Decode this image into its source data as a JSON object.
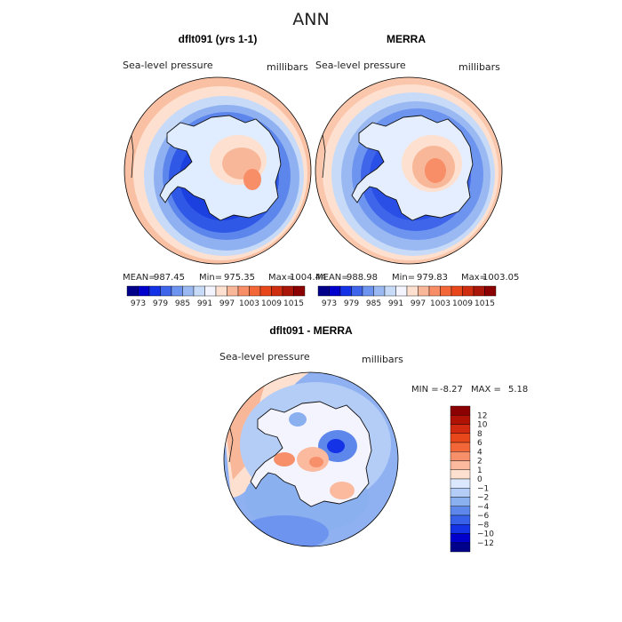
{
  "figure_title": "ANN",
  "panels": [
    {
      "title": "dflt091 (yrs 1-1)",
      "variable": "Sea-level pressure",
      "units": "millibars",
      "stats": {
        "mean_label": "MEAN=",
        "mean": "987.45",
        "min_label": "Min=",
        "min": "975.35",
        "max_label": "Max=",
        "max": "1004.44"
      },
      "colorbar": {
        "ticks": [
          "973",
          "979",
          "985",
          "991",
          "997",
          "1003",
          "1009",
          "1015"
        ],
        "colors": [
          "#00008b",
          "#0000cd",
          "#1432e6",
          "#3f65ea",
          "#6d94ef",
          "#9ab9f3",
          "#c7dbf8",
          "#f4f4ff",
          "#fde0cf",
          "#f9b79a",
          "#f78e67",
          "#f26638",
          "#e8461b",
          "#cf2d10",
          "#aa1608",
          "#8b0000"
        ]
      }
    },
    {
      "title": "MERRA",
      "variable": "Sea-level pressure",
      "units": "millibars",
      "stats": {
        "mean_label": "MEAN=",
        "mean": "988.98",
        "min_label": "Min=",
        "min": "979.83",
        "max_label": "Max=",
        "max": "1003.05"
      },
      "colorbar": {
        "ticks": [
          "973",
          "979",
          "985",
          "991",
          "997",
          "1003",
          "1009",
          "1015"
        ],
        "colors": [
          "#00008b",
          "#0000cd",
          "#1432e6",
          "#3f65ea",
          "#6d94ef",
          "#9ab9f3",
          "#c7dbf8",
          "#f4f4ff",
          "#fde0cf",
          "#f9b79a",
          "#f78e67",
          "#f26638",
          "#e8461b",
          "#cf2d10",
          "#aa1608",
          "#8b0000"
        ]
      }
    },
    {
      "title": "dflt091 - MERRA",
      "variable": "Sea-level pressure",
      "units": "millibars",
      "stats": {
        "min_label": "MIN =",
        "min": "-8.27",
        "max_label": "MAX =",
        "max": "5.18"
      },
      "colorbar": {
        "ticks": [
          "12",
          "10",
          "8",
          "6",
          "4",
          "2",
          "1",
          "0",
          "−1",
          "−2",
          "−4",
          "−6",
          "−8",
          "−10",
          "−12"
        ],
        "colors": [
          "#8b0000",
          "#b01206",
          "#d22a10",
          "#e8461b",
          "#f26638",
          "#f7906a",
          "#fbb99d",
          "#fde0cf",
          "#dbe8ff",
          "#b4cdf6",
          "#8bb0f0",
          "#5d87eb",
          "#3661e8",
          "#1432e6",
          "#0000cd",
          "#00008b"
        ]
      }
    }
  ]
}
